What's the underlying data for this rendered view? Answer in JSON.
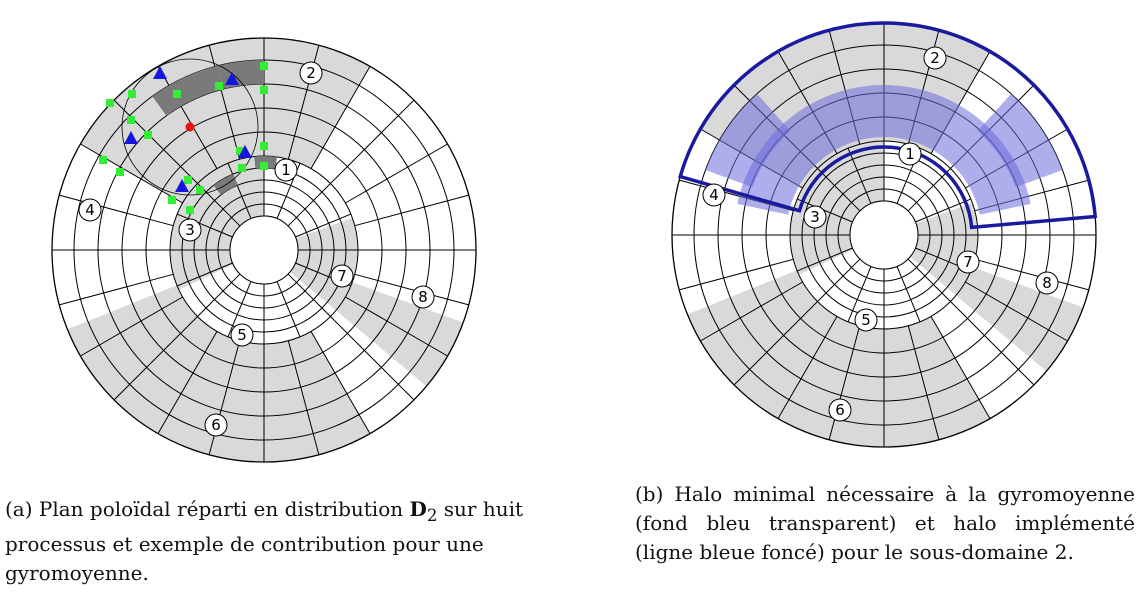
{
  "figure_a": {
    "label": "(a)",
    "caption_pre": "Plan poloïdal réparti en distribution ",
    "caption_symbol": "D",
    "caption_sub": "2",
    "caption_post": " sur huit processus et exemple de contribution pour une gyromoyenne.",
    "subdomains": [
      {
        "id": "1",
        "label": "1"
      },
      {
        "id": "2",
        "label": "2"
      },
      {
        "id": "3",
        "label": "3"
      },
      {
        "id": "4",
        "label": "4"
      },
      {
        "id": "5",
        "label": "5"
      },
      {
        "id": "6",
        "label": "6"
      },
      {
        "id": "7",
        "label": "7"
      },
      {
        "id": "8",
        "label": "8"
      }
    ],
    "marker_colors": {
      "square": "#33ee33",
      "triangle": "#1515dd",
      "point": "#ee1111"
    }
  },
  "figure_b": {
    "label": "(b)",
    "caption_text": "Halo minimal nécessaire à la gyromoyenne (fond bleu transparent) et halo implémenté (ligne bleue foncé) pour le sous-domaine 2.",
    "subdomains": [
      {
        "id": "1",
        "label": "1"
      },
      {
        "id": "2",
        "label": "2"
      },
      {
        "id": "3",
        "label": "3"
      },
      {
        "id": "4",
        "label": "4"
      },
      {
        "id": "5",
        "label": "5"
      },
      {
        "id": "6",
        "label": "6"
      },
      {
        "id": "7",
        "label": "7"
      },
      {
        "id": "8",
        "label": "8"
      }
    ],
    "halo_colors": {
      "minimal": "#6b6bdd",
      "implemented": "#1a1a9e"
    }
  },
  "colors": {
    "shaded": "#d9d9d9",
    "dark_shaded": "#7a7a7a",
    "grid": "#000000"
  }
}
